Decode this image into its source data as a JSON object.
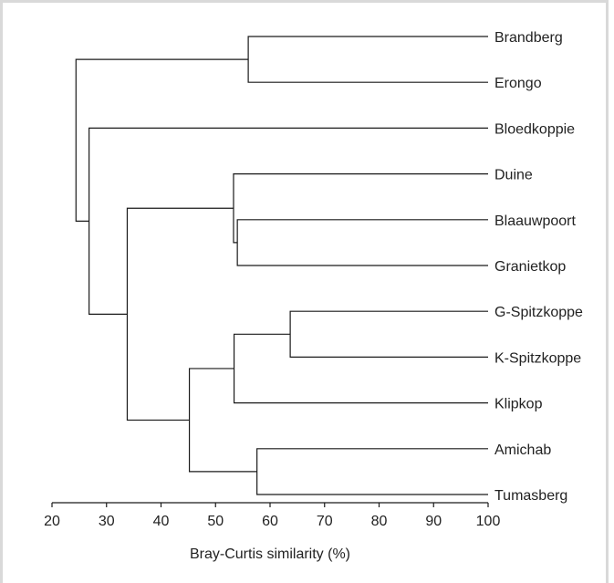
{
  "chart_data": {
    "type": "dendrogram",
    "xlabel": "Bray-Curtis similarity (%)",
    "xlim": [
      20,
      100
    ],
    "xticks": [
      20,
      30,
      40,
      50,
      60,
      70,
      80,
      90,
      100
    ],
    "leaves": [
      "Brandberg",
      "Erongo",
      "Bloedkoppie",
      "Duine",
      "Blaauwpoort",
      "Granietkop",
      "G-Spitzkoppe",
      "K-Spitzkoppe",
      "Klipkop",
      "Amichab",
      "Tumasberg"
    ],
    "merges": [
      {
        "id": "A",
        "children": [
          "Brandberg",
          "Erongo"
        ],
        "similarity": 56
      },
      {
        "id": "B",
        "children": [
          "Blaauwpoort",
          "Granietkop"
        ],
        "similarity": 54
      },
      {
        "id": "C",
        "children": [
          "Duine",
          "B"
        ],
        "similarity": 53.3
      },
      {
        "id": "D",
        "children": [
          "G-Spitzkoppe",
          "K-Spitzkoppe"
        ],
        "similarity": 63.7
      },
      {
        "id": "E",
        "children": [
          "D",
          "Klipkop"
        ],
        "similarity": 53.4
      },
      {
        "id": "F",
        "children": [
          "Amichab",
          "Tumasberg"
        ],
        "similarity": 57.6
      },
      {
        "id": "G",
        "children": [
          "E",
          "F"
        ],
        "similarity": 45.2
      },
      {
        "id": "H",
        "children": [
          "C",
          "G"
        ],
        "similarity": 33.8
      },
      {
        "id": "I",
        "children": [
          "Bloedkoppie",
          "H"
        ],
        "similarity": 26.8
      },
      {
        "id": "J",
        "children": [
          "A",
          "I"
        ],
        "similarity": 24.4
      }
    ]
  }
}
